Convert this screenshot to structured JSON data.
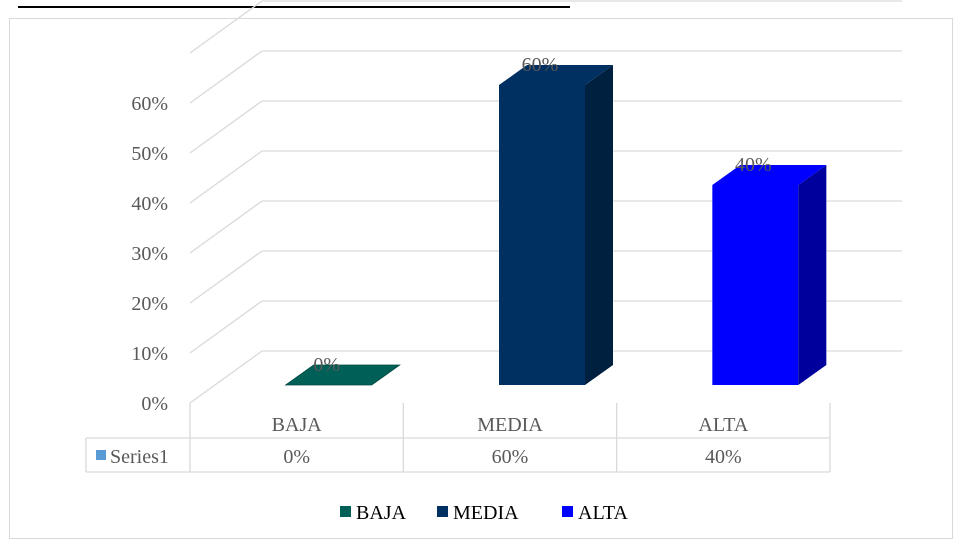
{
  "chart_data": {
    "type": "bar",
    "style": "3d-column with data table",
    "categories": [
      "BAJA",
      "MEDIA",
      "ALTA"
    ],
    "series": [
      {
        "name": "Series1",
        "values": [
          0,
          60,
          40
        ]
      }
    ],
    "value_labels": [
      "0%",
      "60%",
      "40%"
    ],
    "point_colors": [
      "#006058",
      "#002f61",
      "#0000ff"
    ],
    "point_side_colors": [
      "#004840",
      "#00203f",
      "#00009c"
    ],
    "y_ticks": [
      "0%",
      "10%",
      "20%",
      "30%",
      "40%",
      "50%",
      "60%"
    ],
    "ylim": [
      0,
      60
    ],
    "grid": true,
    "data_table": {
      "row_label": "Series1",
      "row_label_color": "#5b9bd5",
      "values": [
        "0%",
        "60%",
        "40%"
      ]
    },
    "legend": {
      "position": "bottom",
      "entries": [
        "BAJA",
        "MEDIA",
        "ALTA"
      ]
    },
    "colors": {
      "grid": "#d9d9d9",
      "text": "#595959",
      "legend_text": "#000000"
    }
  }
}
